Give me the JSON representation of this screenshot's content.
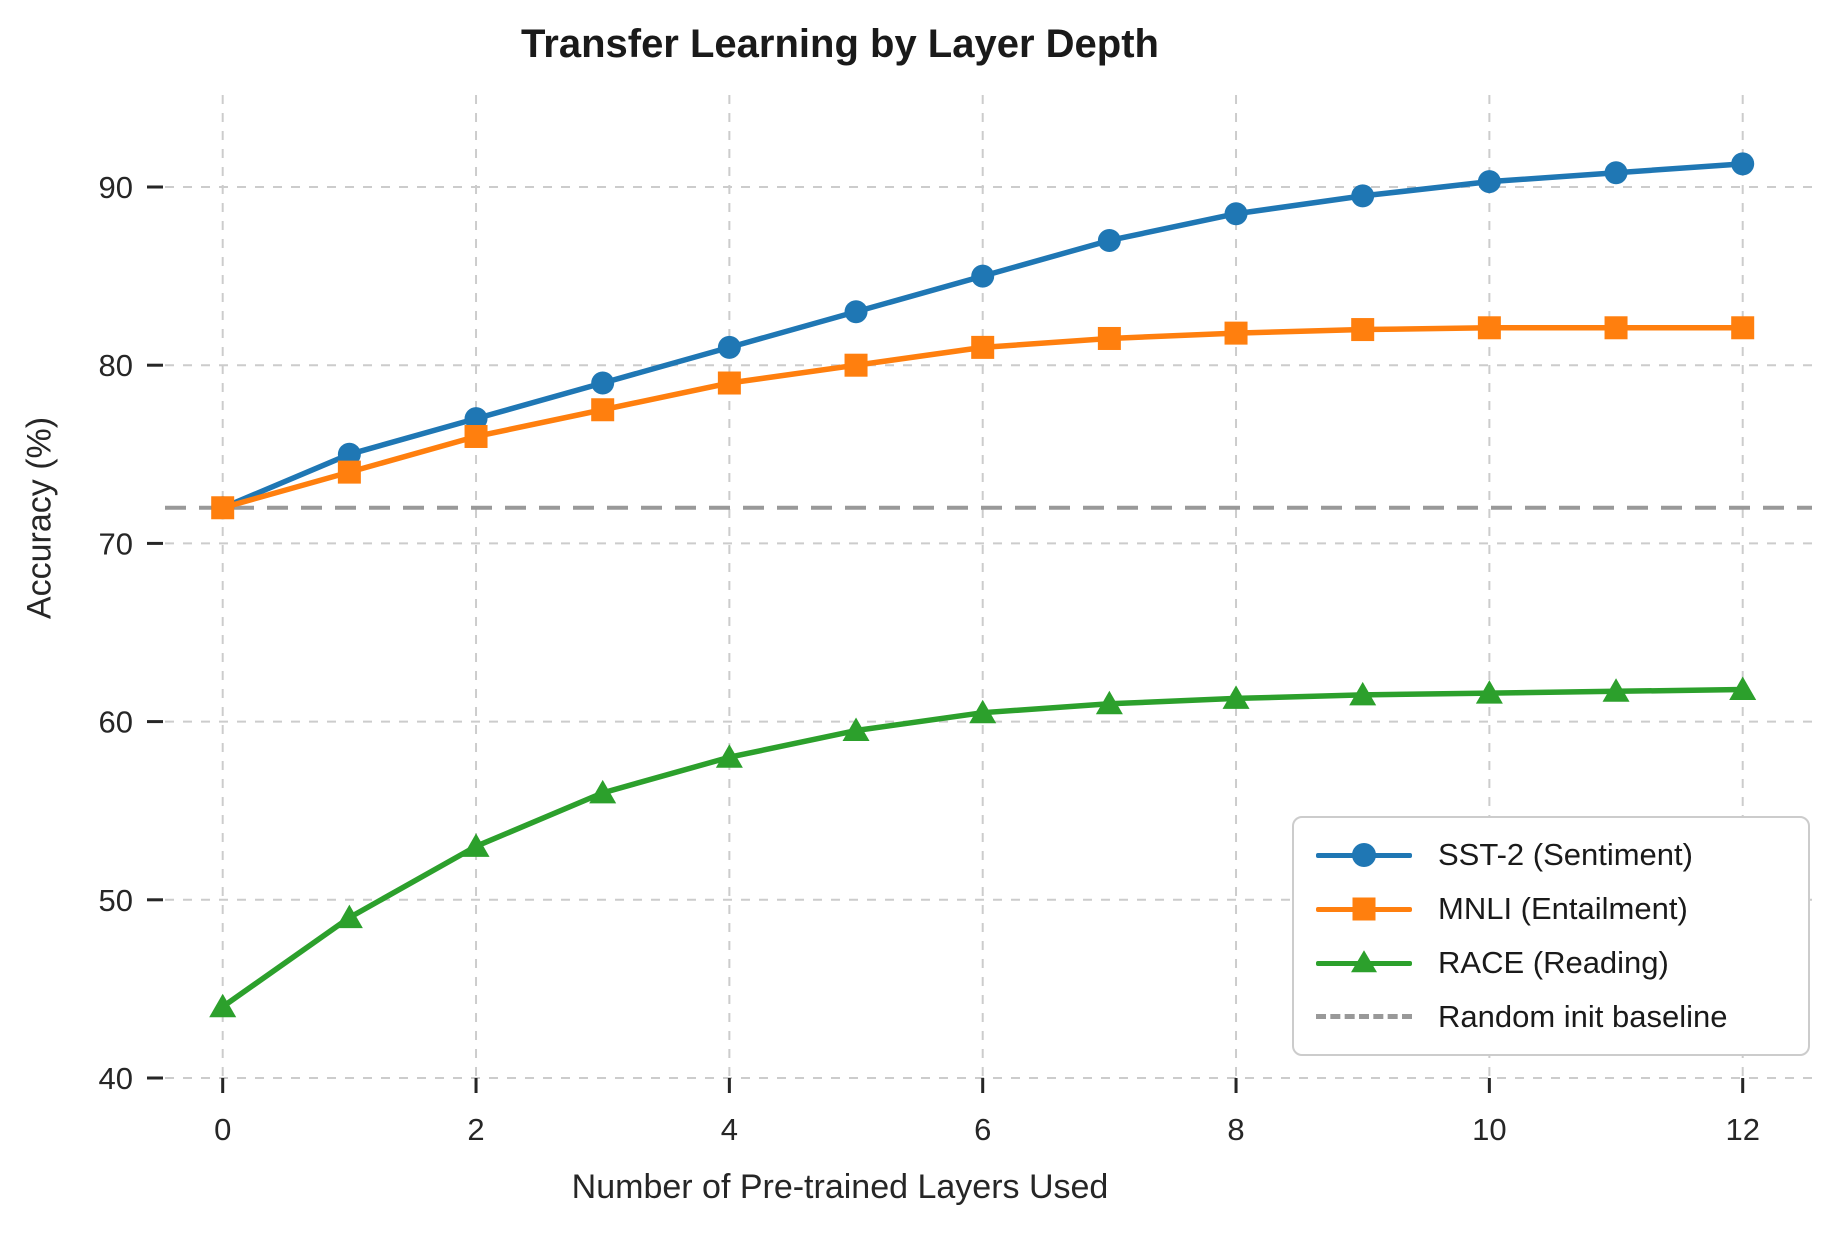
{
  "title": "Transfer Learning by Layer Depth",
  "xlabel": "Number of Pre-trained Layers Used",
  "ylabel": "Accuracy (%)",
  "chart_data": {
    "type": "line",
    "x": [
      0,
      1,
      2,
      3,
      4,
      5,
      6,
      7,
      8,
      9,
      10,
      11,
      12
    ],
    "series": [
      {
        "key": "sst2",
        "name": "SST-2 (Sentiment)",
        "color": "#1f77b4",
        "marker": "circle",
        "values": [
          72,
          75,
          77,
          79,
          81,
          83,
          85,
          87,
          88.5,
          89.5,
          90.3,
          90.8,
          91.3
        ]
      },
      {
        "key": "mnli",
        "name": "MNLI (Entailment)",
        "color": "#ff7f0e",
        "marker": "square",
        "values": [
          72,
          74,
          76,
          77.5,
          79,
          80,
          81,
          81.5,
          81.8,
          82,
          82.1,
          82.1,
          82.1
        ]
      },
      {
        "key": "race",
        "name": "RACE (Reading)",
        "color": "#2ca02c",
        "marker": "triangle",
        "values": [
          44,
          49,
          53,
          56,
          58,
          59.5,
          60.5,
          61,
          61.3,
          61.5,
          61.6,
          61.7,
          61.8
        ]
      }
    ],
    "baseline": {
      "key": "baseline",
      "label": "Random init baseline",
      "value": 72,
      "color": "#999999",
      "style": "dashed"
    },
    "xticks": [
      0,
      2,
      4,
      6,
      8,
      10,
      12
    ],
    "yticks": [
      40,
      50,
      60,
      70,
      80,
      90
    ],
    "xlim": [
      -0.46,
      12.57
    ],
    "ylim": [
      40,
      95.2
    ],
    "grid": true,
    "grid_color": "#cccccc",
    "tick_color": "#262626",
    "legend_position": "lower right"
  }
}
